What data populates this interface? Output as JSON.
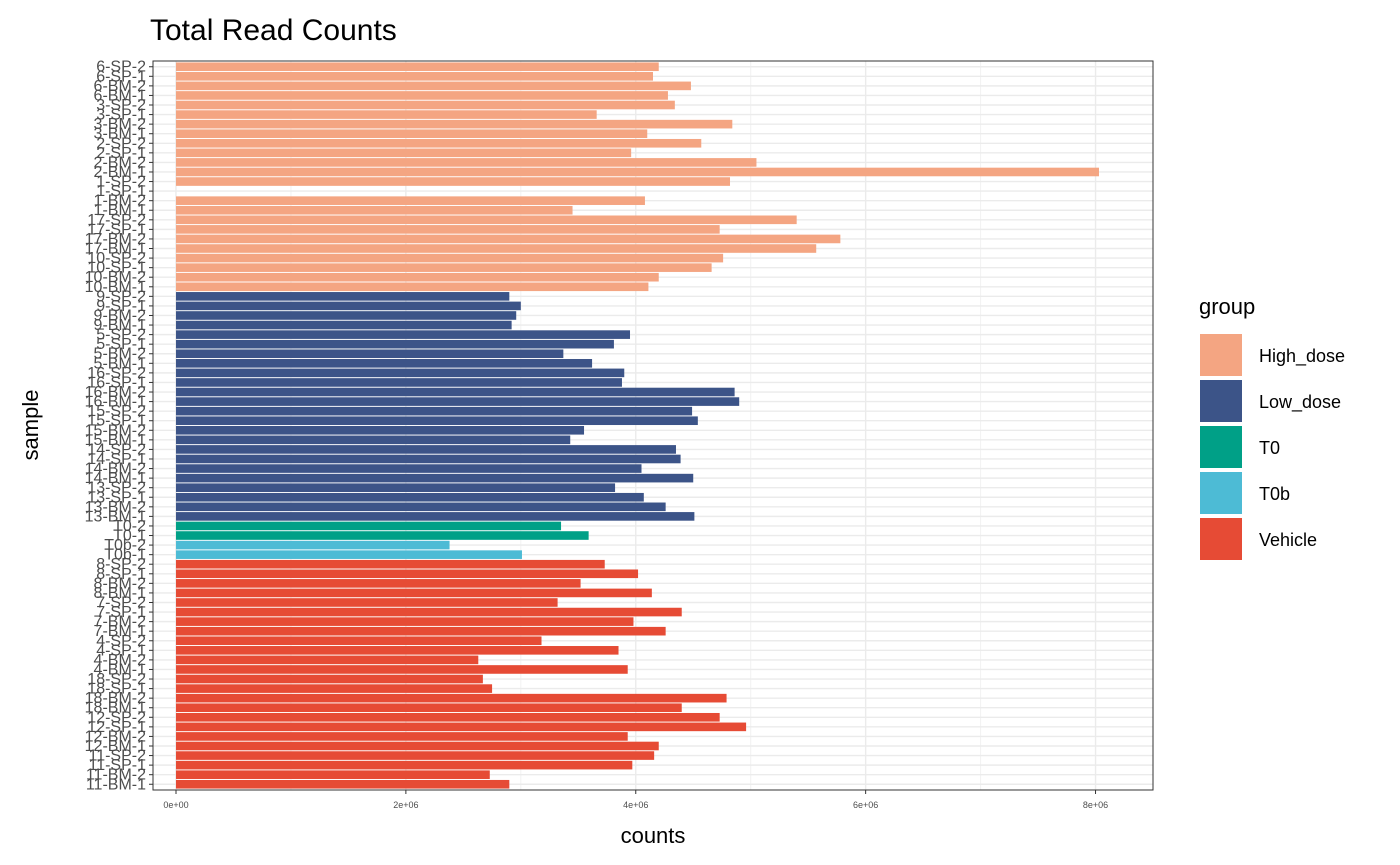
{
  "chart_data": {
    "type": "bar",
    "orientation": "horizontal",
    "title": "Total Read Counts",
    "xlabel": "counts",
    "ylabel": "sample",
    "xlim": [
      -200000,
      8500000
    ],
    "xticks": [
      0,
      2000000,
      4000000,
      6000000,
      8000000
    ],
    "xtick_labels": [
      "0e+00",
      "2e+06",
      "4e+06",
      "6e+06",
      "8e+06"
    ],
    "grid": true,
    "legend": {
      "title": "group",
      "position": "right",
      "entries": [
        {
          "name": "High_dose",
          "color": "#F4A582"
        },
        {
          "name": "Low_dose",
          "color": "#3C5488"
        },
        {
          "name": "T0",
          "color": "#00A087"
        },
        {
          "name": "T0b",
          "color": "#4DBBD5"
        },
        {
          "name": "Vehicle",
          "color": "#E64B35"
        }
      ]
    },
    "samples": [
      {
        "label": "6-SP-2",
        "value": 4200000,
        "group": "High_dose"
      },
      {
        "label": "6-SP-1",
        "value": 4150000,
        "group": "High_dose"
      },
      {
        "label": "6-BM-2",
        "value": 4480000,
        "group": "High_dose"
      },
      {
        "label": "6-BM-1",
        "value": 4280000,
        "group": "High_dose"
      },
      {
        "label": "3-SP-2",
        "value": 4340000,
        "group": "High_dose"
      },
      {
        "label": "3-SP-1",
        "value": 3660000,
        "group": "High_dose"
      },
      {
        "label": "3-BM-2",
        "value": 4840000,
        "group": "High_dose"
      },
      {
        "label": "3-BM-1",
        "value": 4100000,
        "group": "High_dose"
      },
      {
        "label": "2-SP-2",
        "value": 4570000,
        "group": "High_dose"
      },
      {
        "label": "2-SP-1",
        "value": 3960000,
        "group": "High_dose"
      },
      {
        "label": "2-BM-2",
        "value": 5050000,
        "group": "High_dose"
      },
      {
        "label": "2-BM-1",
        "value": 8030000,
        "group": "High_dose"
      },
      {
        "label": "1-SP-2",
        "value": 4820000,
        "group": "High_dose"
      },
      {
        "label": "1-SP-1",
        "value": 0,
        "group": "High_dose"
      },
      {
        "label": "1-BM-2",
        "value": 4080000,
        "group": "High_dose"
      },
      {
        "label": "1-BM-1",
        "value": 3450000,
        "group": "High_dose"
      },
      {
        "label": "17-SP-2",
        "value": 5400000,
        "group": "High_dose"
      },
      {
        "label": "17-SP-1",
        "value": 4730000,
        "group": "High_dose"
      },
      {
        "label": "17-BM-2",
        "value": 5780000,
        "group": "High_dose"
      },
      {
        "label": "17-BM-1",
        "value": 5570000,
        "group": "High_dose"
      },
      {
        "label": "10-SP-2",
        "value": 4760000,
        "group": "High_dose"
      },
      {
        "label": "10-SP-1",
        "value": 4660000,
        "group": "High_dose"
      },
      {
        "label": "10-BM-2",
        "value": 4200000,
        "group": "High_dose"
      },
      {
        "label": "10-BM-1",
        "value": 4110000,
        "group": "High_dose"
      },
      {
        "label": "9-SP-2",
        "value": 2900000,
        "group": "Low_dose"
      },
      {
        "label": "9-SP-1",
        "value": 3000000,
        "group": "Low_dose"
      },
      {
        "label": "9-BM-2",
        "value": 2960000,
        "group": "Low_dose"
      },
      {
        "label": "9-BM-1",
        "value": 2920000,
        "group": "Low_dose"
      },
      {
        "label": "5-SP-2",
        "value": 3950000,
        "group": "Low_dose"
      },
      {
        "label": "5-SP-1",
        "value": 3810000,
        "group": "Low_dose"
      },
      {
        "label": "5-BM-2",
        "value": 3370000,
        "group": "Low_dose"
      },
      {
        "label": "5-BM-1",
        "value": 3620000,
        "group": "Low_dose"
      },
      {
        "label": "16-SP-2",
        "value": 3900000,
        "group": "Low_dose"
      },
      {
        "label": "16-SP-1",
        "value": 3880000,
        "group": "Low_dose"
      },
      {
        "label": "16-BM-2",
        "value": 4860000,
        "group": "Low_dose"
      },
      {
        "label": "16-BM-1",
        "value": 4900000,
        "group": "Low_dose"
      },
      {
        "label": "15-SP-2",
        "value": 4490000,
        "group": "Low_dose"
      },
      {
        "label": "15-SP-1",
        "value": 4540000,
        "group": "Low_dose"
      },
      {
        "label": "15-BM-2",
        "value": 3550000,
        "group": "Low_dose"
      },
      {
        "label": "15-BM-1",
        "value": 3430000,
        "group": "Low_dose"
      },
      {
        "label": "14-SP-2",
        "value": 4350000,
        "group": "Low_dose"
      },
      {
        "label": "14-SP-1",
        "value": 4390000,
        "group": "Low_dose"
      },
      {
        "label": "14-BM-2",
        "value": 4050000,
        "group": "Low_dose"
      },
      {
        "label": "14-BM-1",
        "value": 4500000,
        "group": "Low_dose"
      },
      {
        "label": "13-SP-2",
        "value": 3820000,
        "group": "Low_dose"
      },
      {
        "label": "13-SP-1",
        "value": 4070000,
        "group": "Low_dose"
      },
      {
        "label": "13-BM-2",
        "value": 4260000,
        "group": "Low_dose"
      },
      {
        "label": "13-BM-1",
        "value": 4510000,
        "group": "Low_dose"
      },
      {
        "label": "T0-2",
        "value": 3350000,
        "group": "T0"
      },
      {
        "label": "T0-1",
        "value": 3590000,
        "group": "T0"
      },
      {
        "label": "T0b-2",
        "value": 2380000,
        "group": "T0b"
      },
      {
        "label": "T0b-1",
        "value": 3010000,
        "group": "T0b"
      },
      {
        "label": "8-SP-2",
        "value": 3730000,
        "group": "Vehicle"
      },
      {
        "label": "8-SP-1",
        "value": 4020000,
        "group": "Vehicle"
      },
      {
        "label": "8-BM-2",
        "value": 3520000,
        "group": "Vehicle"
      },
      {
        "label": "8-BM-1",
        "value": 4140000,
        "group": "Vehicle"
      },
      {
        "label": "7-SP-2",
        "value": 3320000,
        "group": "Vehicle"
      },
      {
        "label": "7-SP-1",
        "value": 4400000,
        "group": "Vehicle"
      },
      {
        "label": "7-BM-2",
        "value": 3980000,
        "group": "Vehicle"
      },
      {
        "label": "7-BM-1",
        "value": 4260000,
        "group": "Vehicle"
      },
      {
        "label": "4-SP-2",
        "value": 3180000,
        "group": "Vehicle"
      },
      {
        "label": "4-SP-1",
        "value": 3850000,
        "group": "Vehicle"
      },
      {
        "label": "4-BM-2",
        "value": 2630000,
        "group": "Vehicle"
      },
      {
        "label": "4-BM-1",
        "value": 3930000,
        "group": "Vehicle"
      },
      {
        "label": "18-SP-2",
        "value": 2670000,
        "group": "Vehicle"
      },
      {
        "label": "18-SP-1",
        "value": 2750000,
        "group": "Vehicle"
      },
      {
        "label": "18-BM-2",
        "value": 4790000,
        "group": "Vehicle"
      },
      {
        "label": "18-BM-1",
        "value": 4400000,
        "group": "Vehicle"
      },
      {
        "label": "12-SP-2",
        "value": 4730000,
        "group": "Vehicle"
      },
      {
        "label": "12-SP-1",
        "value": 4960000,
        "group": "Vehicle"
      },
      {
        "label": "12-BM-2",
        "value": 3930000,
        "group": "Vehicle"
      },
      {
        "label": "12-BM-1",
        "value": 4200000,
        "group": "Vehicle"
      },
      {
        "label": "11-SP-2",
        "value": 4160000,
        "group": "Vehicle"
      },
      {
        "label": "11-SP-1",
        "value": 3970000,
        "group": "Vehicle"
      },
      {
        "label": "11-BM-2",
        "value": 2730000,
        "group": "Vehicle"
      },
      {
        "label": "11-BM-1",
        "value": 2900000,
        "group": "Vehicle"
      }
    ]
  }
}
